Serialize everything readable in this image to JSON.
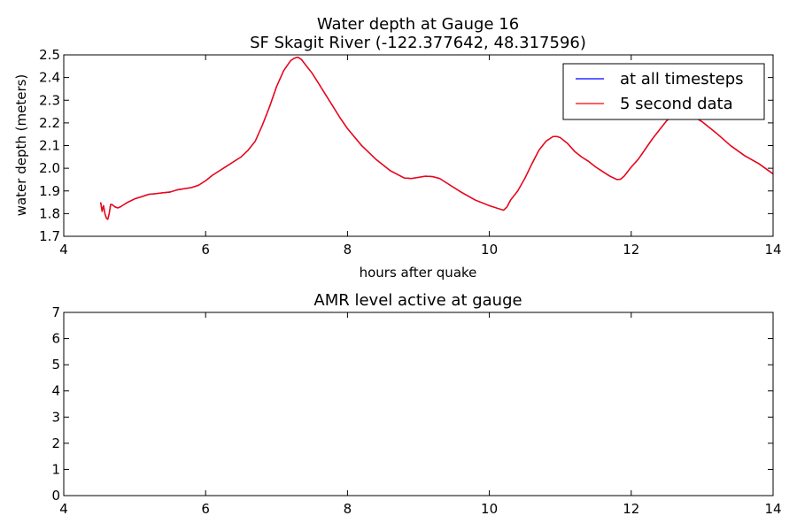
{
  "chart_data": [
    {
      "type": "line",
      "title": "Water depth at Gauge 16",
      "subtitle": "SF Skagit River  (-122.377642, 48.317596)",
      "xlabel": "hours after quake",
      "ylabel": "water depth (meters)",
      "xlim": [
        4,
        14
      ],
      "ylim": [
        1.7,
        2.5
      ],
      "xticks": [
        "4",
        "6",
        "8",
        "10",
        "12",
        "14"
      ],
      "yticks": [
        "1.7",
        "1.8",
        "1.9",
        "2.0",
        "2.1",
        "2.2",
        "2.3",
        "2.4",
        "2.5"
      ],
      "grid": false,
      "legend_position": "top-right",
      "series": [
        {
          "name": "at all timesteps",
          "color": "#0000ff",
          "x": [
            4.52,
            4.54,
            4.56,
            4.58,
            4.6,
            4.62,
            4.64,
            4.66,
            4.68,
            4.72,
            4.76,
            4.8,
            4.85,
            4.9,
            5.0,
            5.1,
            5.2,
            5.3,
            5.4,
            5.5,
            5.6,
            5.7,
            5.8,
            5.9,
            6.0,
            6.1,
            6.2,
            6.3,
            6.4,
            6.5,
            6.6,
            6.7,
            6.8,
            6.9,
            7.0,
            7.1,
            7.2,
            7.25,
            7.3,
            7.35,
            7.4,
            7.5,
            7.6,
            7.7,
            7.8,
            7.9,
            8.0,
            8.2,
            8.4,
            8.6,
            8.8,
            8.9,
            9.0,
            9.1,
            9.2,
            9.3,
            9.4,
            9.6,
            9.8,
            10.0,
            10.1,
            10.2,
            10.25,
            10.3,
            10.4,
            10.5,
            10.6,
            10.7,
            10.8,
            10.9,
            10.95,
            11.0,
            11.1,
            11.2,
            11.3,
            11.4,
            11.5,
            11.6,
            11.7,
            11.8,
            11.85,
            11.9,
            12.0,
            12.1,
            12.2,
            12.3,
            12.4,
            12.5,
            12.6,
            12.7,
            12.8,
            12.9,
            13.0,
            13.2,
            13.4,
            13.6,
            13.8,
            14.0
          ],
          "y": [
            1.85,
            1.81,
            1.835,
            1.8,
            1.78,
            1.775,
            1.8,
            1.84,
            1.84,
            1.83,
            1.825,
            1.83,
            1.84,
            1.85,
            1.865,
            1.875,
            1.885,
            1.888,
            1.892,
            1.895,
            1.905,
            1.91,
            1.915,
            1.925,
            1.945,
            1.97,
            1.99,
            2.01,
            2.03,
            2.05,
            2.08,
            2.12,
            2.19,
            2.27,
            2.36,
            2.43,
            2.475,
            2.485,
            2.49,
            2.48,
            2.46,
            2.42,
            2.37,
            2.32,
            2.27,
            2.22,
            2.175,
            2.1,
            2.04,
            1.99,
            1.957,
            1.955,
            1.96,
            1.965,
            1.963,
            1.955,
            1.935,
            1.895,
            1.86,
            1.835,
            1.825,
            1.815,
            1.83,
            1.86,
            1.9,
            1.955,
            2.02,
            2.08,
            2.12,
            2.14,
            2.14,
            2.135,
            2.11,
            2.075,
            2.05,
            2.03,
            2.005,
            1.985,
            1.965,
            1.95,
            1.952,
            1.965,
            2.005,
            2.04,
            2.085,
            2.13,
            2.17,
            2.21,
            2.235,
            2.245,
            2.24,
            2.225,
            2.205,
            2.155,
            2.1,
            2.055,
            2.02,
            1.975
          ]
        },
        {
          "name": "5 second data",
          "color": "#ff0000",
          "x": [
            4.52,
            4.54,
            4.56,
            4.58,
            4.6,
            4.62,
            4.64,
            4.66,
            4.68,
            4.72,
            4.76,
            4.8,
            4.85,
            4.9,
            5.0,
            5.1,
            5.2,
            5.3,
            5.4,
            5.5,
            5.6,
            5.7,
            5.8,
            5.9,
            6.0,
            6.1,
            6.2,
            6.3,
            6.4,
            6.5,
            6.6,
            6.7,
            6.8,
            6.9,
            7.0,
            7.1,
            7.2,
            7.25,
            7.3,
            7.35,
            7.4,
            7.5,
            7.6,
            7.7,
            7.8,
            7.9,
            8.0,
            8.2,
            8.4,
            8.6,
            8.8,
            8.9,
            9.0,
            9.1,
            9.2,
            9.3,
            9.4,
            9.6,
            9.8,
            10.0,
            10.1,
            10.2,
            10.25,
            10.3,
            10.4,
            10.5,
            10.6,
            10.7,
            10.8,
            10.9,
            10.95,
            11.0,
            11.1,
            11.2,
            11.3,
            11.4,
            11.5,
            11.6,
            11.7,
            11.8,
            11.85,
            11.9,
            12.0,
            12.1,
            12.2,
            12.3,
            12.4,
            12.5,
            12.6,
            12.7,
            12.8,
            12.9,
            13.0,
            13.2,
            13.4,
            13.6,
            13.8,
            14.0
          ],
          "y": [
            1.85,
            1.81,
            1.835,
            1.8,
            1.78,
            1.775,
            1.8,
            1.84,
            1.84,
            1.83,
            1.825,
            1.83,
            1.84,
            1.85,
            1.865,
            1.875,
            1.885,
            1.888,
            1.892,
            1.895,
            1.905,
            1.91,
            1.915,
            1.925,
            1.945,
            1.97,
            1.99,
            2.01,
            2.03,
            2.05,
            2.08,
            2.12,
            2.19,
            2.27,
            2.36,
            2.43,
            2.475,
            2.485,
            2.49,
            2.48,
            2.46,
            2.42,
            2.37,
            2.32,
            2.27,
            2.22,
            2.175,
            2.1,
            2.04,
            1.99,
            1.957,
            1.955,
            1.96,
            1.965,
            1.963,
            1.955,
            1.935,
            1.895,
            1.86,
            1.835,
            1.825,
            1.815,
            1.83,
            1.86,
            1.9,
            1.955,
            2.02,
            2.08,
            2.12,
            2.14,
            2.14,
            2.135,
            2.11,
            2.075,
            2.05,
            2.03,
            2.005,
            1.985,
            1.965,
            1.95,
            1.952,
            1.965,
            2.005,
            2.04,
            2.085,
            2.13,
            2.17,
            2.21,
            2.235,
            2.245,
            2.24,
            2.225,
            2.205,
            2.155,
            2.1,
            2.055,
            2.02,
            1.975
          ]
        }
      ]
    },
    {
      "type": "line",
      "title": "AMR level active at gauge",
      "xlim": [
        4,
        14
      ],
      "ylim": [
        0,
        7
      ],
      "xticks": [
        "4",
        "6",
        "8",
        "10",
        "12",
        "14"
      ],
      "yticks": [
        "0",
        "1",
        "2",
        "3",
        "4",
        "5",
        "6",
        "7"
      ],
      "grid": false,
      "series": []
    }
  ]
}
